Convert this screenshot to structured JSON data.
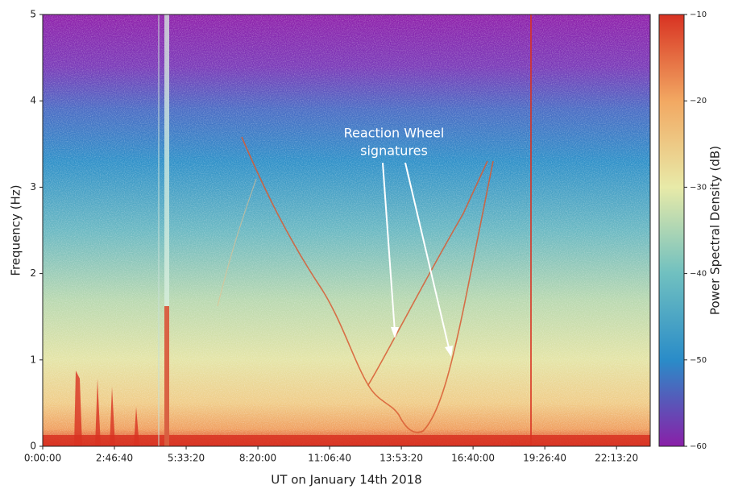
{
  "chart_data": {
    "type": "spectrogram",
    "x_label": "UT on January 14th 2018",
    "y_label": "Frequency (Hz)",
    "colorbar_label": "Power Spectral Density (dB)",
    "annotation": [
      "Reaction Wheel",
      "signatures"
    ],
    "xlim": [
      0,
      84700
    ],
    "xticks": [
      {
        "value": 0,
        "label": "0:00:00"
      },
      {
        "value": 10000,
        "label": "2:46:40"
      },
      {
        "value": 20000,
        "label": "5:33:20"
      },
      {
        "value": 30000,
        "label": "8:20:00"
      },
      {
        "value": 40000,
        "label": "11:06:40"
      },
      {
        "value": 50000,
        "label": "13:53:20"
      },
      {
        "value": 60000,
        "label": "16:40:00"
      },
      {
        "value": 70000,
        "label": "19:26:40"
      },
      {
        "value": 80000,
        "label": "22:13:20"
      }
    ],
    "ylim": [
      0,
      5
    ],
    "yticks": [
      0,
      1,
      2,
      3,
      4,
      5
    ],
    "clim": [
      -60,
      -10
    ],
    "cticks": [
      {
        "value": -60,
        "label": "−60"
      },
      {
        "value": -50,
        "label": "−50"
      },
      {
        "value": -40,
        "label": "−40"
      },
      {
        "value": -30,
        "label": "−30"
      },
      {
        "value": -20,
        "label": "−20"
      },
      {
        "value": -10,
        "label": "−10"
      }
    ],
    "colorscale": [
      "#8a1fa8",
      "#2a8cc8",
      "#70c0c0",
      "#e8eaa8",
      "#f2a862",
      "#d83222"
    ]
  }
}
